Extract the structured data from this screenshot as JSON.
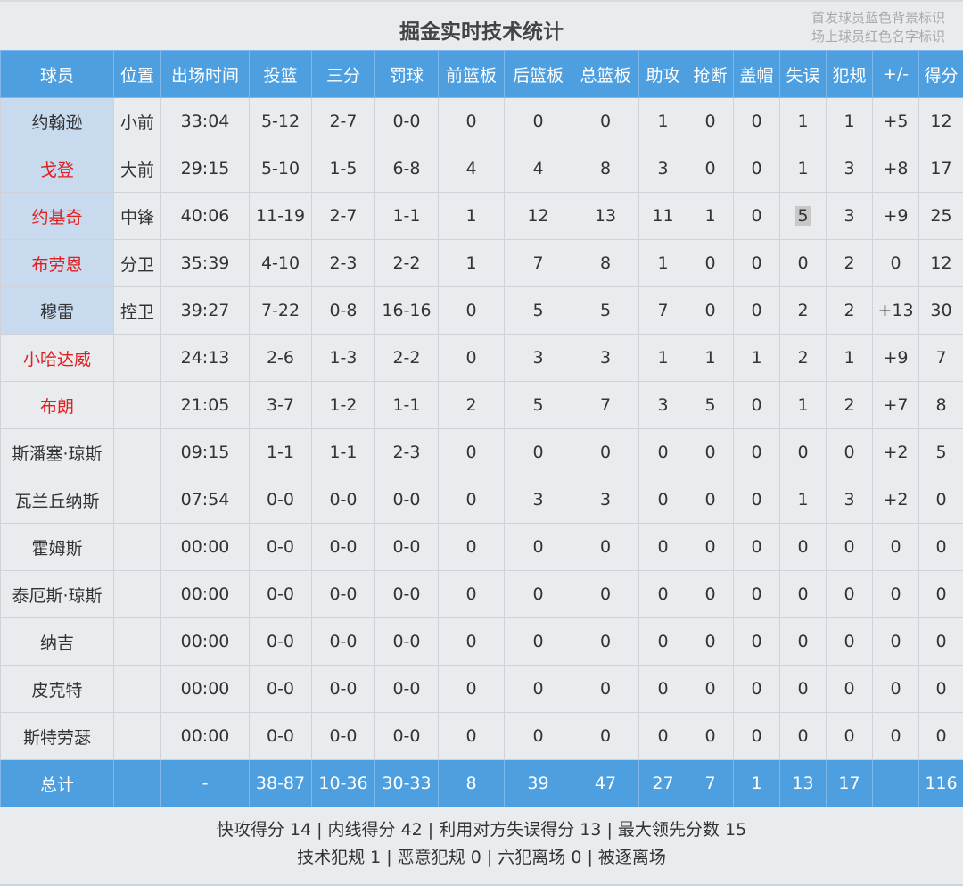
{
  "title": "掘金实时技术统计",
  "legend": [
    "首发球员蓝色背景标识",
    "场上球员红色名字标识"
  ],
  "columns": [
    "球员",
    "位置",
    "出场时间",
    "投篮",
    "三分",
    "罚球",
    "前篮板",
    "后篮板",
    "总篮板",
    "助攻",
    "抢断",
    "盖帽",
    "失误",
    "犯规",
    "+/-",
    "得分"
  ],
  "players": [
    {
      "name": "约翰逊",
      "starter": true,
      "on_court": false,
      "stats": [
        "小前",
        "33:04",
        "5-12",
        "2-7",
        "0-0",
        "0",
        "0",
        "0",
        "1",
        "0",
        "0",
        "1",
        "1",
        "+5",
        "12"
      ]
    },
    {
      "name": "戈登",
      "starter": true,
      "on_court": true,
      "stats": [
        "大前",
        "29:15",
        "5-10",
        "1-5",
        "6-8",
        "4",
        "4",
        "8",
        "3",
        "0",
        "0",
        "1",
        "3",
        "+8",
        "17"
      ]
    },
    {
      "name": "约基奇",
      "starter": true,
      "on_court": true,
      "highlight_col": 12,
      "stats": [
        "中锋",
        "40:06",
        "11-19",
        "2-7",
        "1-1",
        "1",
        "12",
        "13",
        "11",
        "1",
        "0",
        "5",
        "3",
        "+9",
        "25"
      ]
    },
    {
      "name": "布劳恩",
      "starter": true,
      "on_court": true,
      "stats": [
        "分卫",
        "35:39",
        "4-10",
        "2-3",
        "2-2",
        "1",
        "7",
        "8",
        "1",
        "0",
        "0",
        "0",
        "2",
        "0",
        "12"
      ]
    },
    {
      "name": "穆雷",
      "starter": true,
      "on_court": false,
      "stats": [
        "控卫",
        "39:27",
        "7-22",
        "0-8",
        "16-16",
        "0",
        "5",
        "5",
        "7",
        "0",
        "0",
        "2",
        "2",
        "+13",
        "30"
      ]
    },
    {
      "name": "小哈达威",
      "starter": false,
      "on_court": true,
      "stats": [
        "",
        "24:13",
        "2-6",
        "1-3",
        "2-2",
        "0",
        "3",
        "3",
        "1",
        "1",
        "1",
        "2",
        "1",
        "+9",
        "7"
      ]
    },
    {
      "name": "布朗",
      "starter": false,
      "on_court": true,
      "stats": [
        "",
        "21:05",
        "3-7",
        "1-2",
        "1-1",
        "2",
        "5",
        "7",
        "3",
        "5",
        "0",
        "1",
        "2",
        "+7",
        "8"
      ]
    },
    {
      "name": "斯潘塞·琼斯",
      "starter": false,
      "on_court": false,
      "stats": [
        "",
        "09:15",
        "1-1",
        "1-1",
        "2-3",
        "0",
        "0",
        "0",
        "0",
        "0",
        "0",
        "0",
        "0",
        "+2",
        "5"
      ]
    },
    {
      "name": "瓦兰丘纳斯",
      "starter": false,
      "on_court": false,
      "stats": [
        "",
        "07:54",
        "0-0",
        "0-0",
        "0-0",
        "0",
        "3",
        "3",
        "0",
        "0",
        "0",
        "1",
        "3",
        "+2",
        "0"
      ]
    },
    {
      "name": "霍姆斯",
      "starter": false,
      "on_court": false,
      "stats": [
        "",
        "00:00",
        "0-0",
        "0-0",
        "0-0",
        "0",
        "0",
        "0",
        "0",
        "0",
        "0",
        "0",
        "0",
        "0",
        "0"
      ]
    },
    {
      "name": "泰厄斯·琼斯",
      "starter": false,
      "on_court": false,
      "stats": [
        "",
        "00:00",
        "0-0",
        "0-0",
        "0-0",
        "0",
        "0",
        "0",
        "0",
        "0",
        "0",
        "0",
        "0",
        "0",
        "0"
      ]
    },
    {
      "name": "纳吉",
      "starter": false,
      "on_court": false,
      "stats": [
        "",
        "00:00",
        "0-0",
        "0-0",
        "0-0",
        "0",
        "0",
        "0",
        "0",
        "0",
        "0",
        "0",
        "0",
        "0",
        "0"
      ]
    },
    {
      "name": "皮克特",
      "starter": false,
      "on_court": false,
      "stats": [
        "",
        "00:00",
        "0-0",
        "0-0",
        "0-0",
        "0",
        "0",
        "0",
        "0",
        "0",
        "0",
        "0",
        "0",
        "0",
        "0"
      ]
    },
    {
      "name": "斯特劳瑟",
      "starter": false,
      "on_court": false,
      "stats": [
        "",
        "00:00",
        "0-0",
        "0-0",
        "0-0",
        "0",
        "0",
        "0",
        "0",
        "0",
        "0",
        "0",
        "0",
        "0",
        "0"
      ]
    }
  ],
  "total": {
    "label": "总计",
    "stats": [
      "",
      "-",
      "38-87",
      "10-36",
      "30-33",
      "8",
      "39",
      "47",
      "27",
      "7",
      "1",
      "13",
      "17",
      "",
      "116"
    ]
  },
  "footer": {
    "line1": "快攻得分 14 | 内线得分 42 | 利用对方失误得分 13 | 最大领先分数 15",
    "line2": "技术犯规 1 | 恶意犯规 0 | 六犯离场 0 | 被逐离场"
  },
  "colors": {
    "header_bg": "#4d9fe0",
    "starter_bg": "#c8dbee",
    "on_court_text": "#e02020",
    "page_bg": "#e9ecef"
  }
}
